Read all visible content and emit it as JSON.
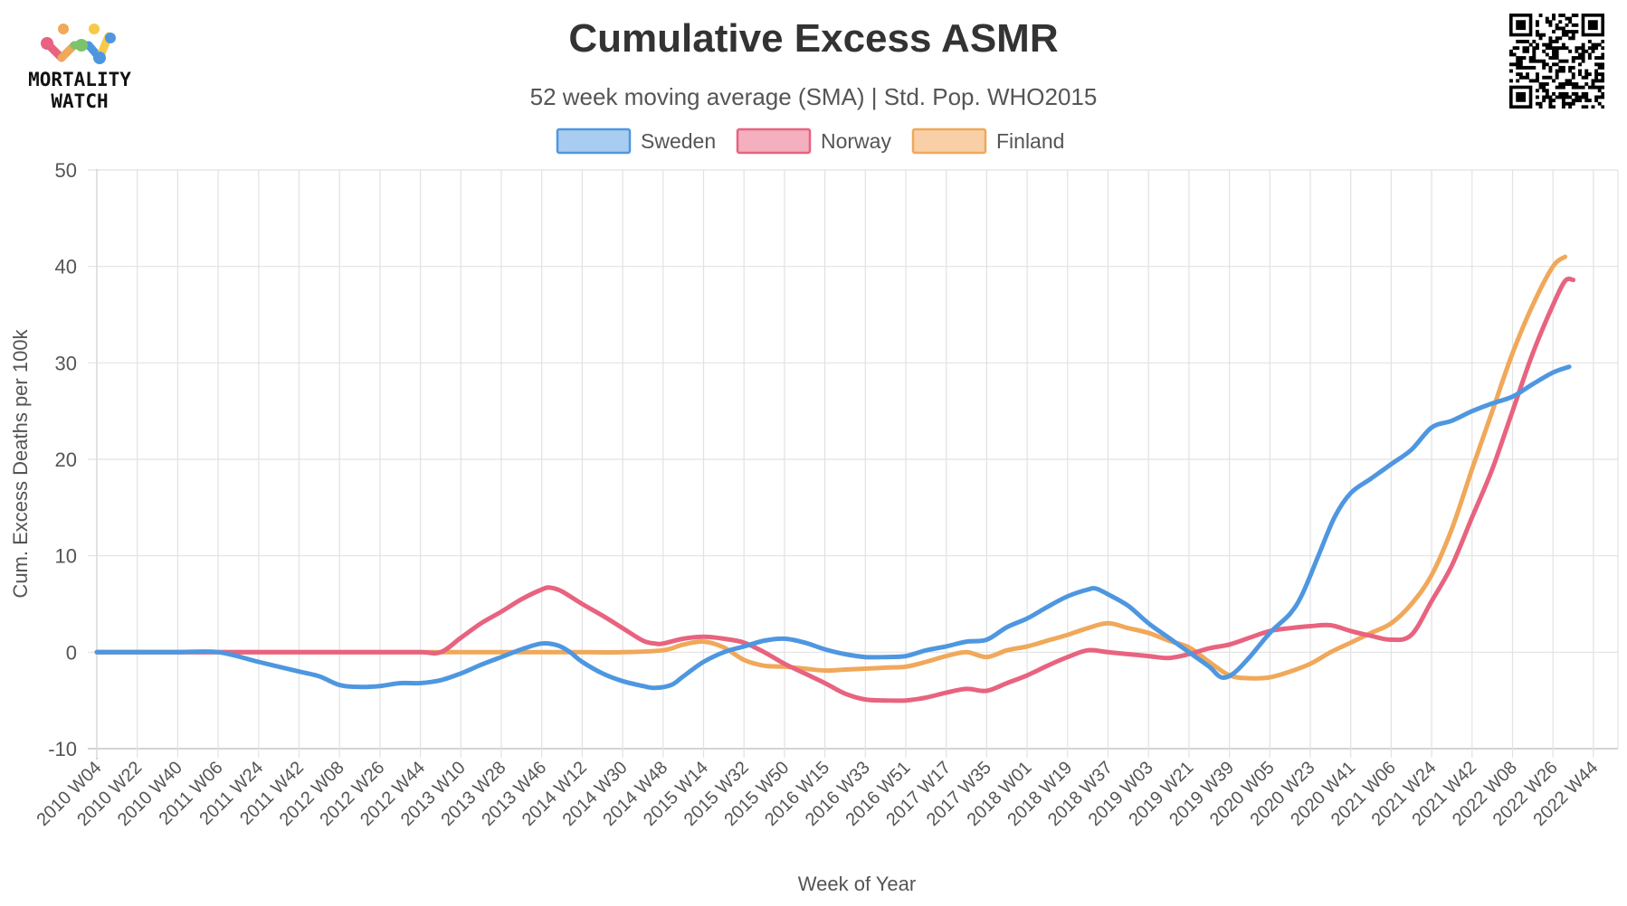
{
  "brand": {
    "name_line1": "MORTALITY",
    "name_line2": "WATCH"
  },
  "colors": {
    "sweden": "#4e97e0",
    "norway": "#e8637f",
    "finland": "#f0a85a",
    "grid": "#e2e2e2",
    "text": "#333333"
  },
  "chart_data": {
    "type": "line",
    "title": "Cumulative Excess ASMR",
    "subtitle": "52 week moving average (SMA) | Std. Pop. WHO2015",
    "xlabel": "Week of Year",
    "ylabel": "Cum. Excess Deaths per 100k",
    "ylim": [
      -10,
      50
    ],
    "yticks": [
      "50",
      "40",
      "30",
      "20",
      "10",
      "0",
      "-10"
    ],
    "xticks": [
      "2010 W04",
      "2010 W22",
      "2010 W40",
      "2011 W06",
      "2011 W24",
      "2011 W42",
      "2012 W08",
      "2012 W26",
      "2012 W44",
      "2013 W10",
      "2013 W28",
      "2013 W46",
      "2014 W12",
      "2014 W30",
      "2014 W48",
      "2015 W14",
      "2015 W32",
      "2015 W50",
      "2016 W15",
      "2016 W33",
      "2016 W51",
      "2017 W17",
      "2017 W35",
      "2018 W01",
      "2018 W19",
      "2018 W37",
      "2019 W03",
      "2019 W21",
      "2019 W39",
      "2020 W05",
      "2020 W23",
      "2020 W41",
      "2021 W06",
      "2021 W24",
      "2021 W42",
      "2022 W08",
      "2022 W26",
      "2022 W44"
    ],
    "grid": true,
    "legend_position": "top",
    "series": [
      {
        "name": "Sweden",
        "color": "#4e97e0",
        "fill": "#a9cdf1",
        "points": [
          [
            0,
            0
          ],
          [
            1,
            0
          ],
          [
            2,
            0
          ],
          [
            3,
            0
          ],
          [
            4,
            -1
          ],
          [
            5,
            -2
          ],
          [
            5.5,
            -2.5
          ],
          [
            6,
            -3.4
          ],
          [
            6.5,
            -3.6
          ],
          [
            7,
            -3.5
          ],
          [
            7.5,
            -3.2
          ],
          [
            8,
            -3.2
          ],
          [
            8.5,
            -2.9
          ],
          [
            9,
            -2.2
          ],
          [
            9.5,
            -1.3
          ],
          [
            10,
            -0.5
          ],
          [
            10.5,
            0.3
          ],
          [
            11,
            0.9
          ],
          [
            11.4,
            0.7
          ],
          [
            11.7,
            0
          ],
          [
            12,
            -1
          ],
          [
            12.5,
            -2.2
          ],
          [
            13,
            -3
          ],
          [
            13.5,
            -3.5
          ],
          [
            13.8,
            -3.7
          ],
          [
            14.2,
            -3.4
          ],
          [
            14.5,
            -2.5
          ],
          [
            15,
            -1
          ],
          [
            15.5,
            0
          ],
          [
            16,
            0.6
          ],
          [
            16.5,
            1.2
          ],
          [
            17,
            1.4
          ],
          [
            17.5,
            1
          ],
          [
            18,
            0.3
          ],
          [
            18.5,
            -0.2
          ],
          [
            19,
            -0.5
          ],
          [
            19.5,
            -0.5
          ],
          [
            20,
            -0.4
          ],
          [
            20.5,
            0.2
          ],
          [
            21,
            0.6
          ],
          [
            21.5,
            1.1
          ],
          [
            22,
            1.3
          ],
          [
            22.5,
            2.6
          ],
          [
            23,
            3.5
          ],
          [
            23.5,
            4.7
          ],
          [
            24,
            5.8
          ],
          [
            24.5,
            6.5
          ],
          [
            24.7,
            6.6
          ],
          [
            25,
            6
          ],
          [
            25.5,
            4.8
          ],
          [
            26,
            3
          ],
          [
            26.5,
            1.5
          ],
          [
            27,
            0
          ],
          [
            27.5,
            -1.5
          ],
          [
            27.8,
            -2.6
          ],
          [
            28.1,
            -2.2
          ],
          [
            28.5,
            -0.5
          ],
          [
            29,
            2
          ],
          [
            29.5,
            4
          ],
          [
            29.8,
            6
          ],
          [
            30.2,
            10
          ],
          [
            30.6,
            14
          ],
          [
            31,
            16.5
          ],
          [
            31.5,
            18
          ],
          [
            32,
            19.5
          ],
          [
            32.5,
            21
          ],
          [
            33,
            23.3
          ],
          [
            33.5,
            24
          ],
          [
            34,
            25
          ],
          [
            34.5,
            25.8
          ],
          [
            35,
            26.5
          ],
          [
            35.5,
            27.8
          ],
          [
            36,
            29
          ],
          [
            36.4,
            29.6
          ]
        ]
      },
      {
        "name": "Norway",
        "color": "#e8637f",
        "fill": "#f4b0bf",
        "points": [
          [
            0,
            0
          ],
          [
            1,
            0
          ],
          [
            2,
            0
          ],
          [
            3,
            0
          ],
          [
            4,
            0
          ],
          [
            5,
            0
          ],
          [
            6,
            0
          ],
          [
            7,
            0
          ],
          [
            8,
            0
          ],
          [
            8.5,
            0
          ],
          [
            9,
            1.5
          ],
          [
            9.5,
            3
          ],
          [
            10,
            4.2
          ],
          [
            10.5,
            5.5
          ],
          [
            11,
            6.5
          ],
          [
            11.2,
            6.7
          ],
          [
            11.5,
            6.3
          ],
          [
            12,
            5
          ],
          [
            12.5,
            3.8
          ],
          [
            13,
            2.5
          ],
          [
            13.5,
            1.2
          ],
          [
            13.8,
            0.9
          ],
          [
            14,
            0.9
          ],
          [
            14.5,
            1.4
          ],
          [
            15,
            1.6
          ],
          [
            15.5,
            1.4
          ],
          [
            16,
            1
          ],
          [
            16.5,
            0
          ],
          [
            17,
            -1.2
          ],
          [
            17.5,
            -2.2
          ],
          [
            18,
            -3.2
          ],
          [
            18.5,
            -4.3
          ],
          [
            19,
            -4.9
          ],
          [
            19.5,
            -5
          ],
          [
            20,
            -5
          ],
          [
            20.5,
            -4.7
          ],
          [
            21,
            -4.2
          ],
          [
            21.5,
            -3.8
          ],
          [
            22,
            -4
          ],
          [
            22.5,
            -3.2
          ],
          [
            23,
            -2.4
          ],
          [
            23.5,
            -1.4
          ],
          [
            24,
            -0.5
          ],
          [
            24.5,
            0.2
          ],
          [
            25,
            0
          ],
          [
            25.5,
            -0.2
          ],
          [
            26,
            -0.4
          ],
          [
            26.5,
            -0.6
          ],
          [
            27,
            -0.2
          ],
          [
            27.5,
            0.4
          ],
          [
            28,
            0.8
          ],
          [
            28.5,
            1.5
          ],
          [
            29,
            2.2
          ],
          [
            29.5,
            2.5
          ],
          [
            30,
            2.7
          ],
          [
            30.5,
            2.8
          ],
          [
            31,
            2.2
          ],
          [
            31.5,
            1.7
          ],
          [
            32,
            1.3
          ],
          [
            32.5,
            1.8
          ],
          [
            33,
            5.3
          ],
          [
            33.5,
            9
          ],
          [
            34,
            14
          ],
          [
            34.5,
            19
          ],
          [
            35,
            25
          ],
          [
            35.5,
            31
          ],
          [
            36,
            36
          ],
          [
            36.3,
            38.5
          ],
          [
            36.5,
            38.6
          ]
        ]
      },
      {
        "name": "Finland",
        "color": "#f0a85a",
        "fill": "#f8cfa6",
        "points": [
          [
            0,
            0
          ],
          [
            1,
            0
          ],
          [
            2,
            0
          ],
          [
            3,
            0
          ],
          [
            4,
            0
          ],
          [
            5,
            0
          ],
          [
            6,
            0
          ],
          [
            7,
            0
          ],
          [
            8,
            0
          ],
          [
            9,
            0
          ],
          [
            10,
            0
          ],
          [
            11,
            0
          ],
          [
            12,
            0
          ],
          [
            13,
            0
          ],
          [
            14,
            0.2
          ],
          [
            14.5,
            0.8
          ],
          [
            15,
            1.1
          ],
          [
            15.5,
            0.5
          ],
          [
            16,
            -0.8
          ],
          [
            16.5,
            -1.4
          ],
          [
            17,
            -1.5
          ],
          [
            17.5,
            -1.7
          ],
          [
            18,
            -1.9
          ],
          [
            18.5,
            -1.8
          ],
          [
            19,
            -1.7
          ],
          [
            19.5,
            -1.6
          ],
          [
            20,
            -1.5
          ],
          [
            20.5,
            -1
          ],
          [
            21,
            -0.4
          ],
          [
            21.5,
            0
          ],
          [
            22,
            -0.5
          ],
          [
            22.5,
            0.2
          ],
          [
            23,
            0.6
          ],
          [
            23.5,
            1.2
          ],
          [
            24,
            1.8
          ],
          [
            24.5,
            2.5
          ],
          [
            25,
            3
          ],
          [
            25.5,
            2.5
          ],
          [
            26,
            2
          ],
          [
            26.5,
            1.2
          ],
          [
            27,
            0.5
          ],
          [
            27.5,
            -1
          ],
          [
            28,
            -2.4
          ],
          [
            28.5,
            -2.7
          ],
          [
            29,
            -2.6
          ],
          [
            29.5,
            -2
          ],
          [
            30,
            -1.2
          ],
          [
            30.5,
            0
          ],
          [
            31,
            1
          ],
          [
            31.5,
            2
          ],
          [
            32,
            3
          ],
          [
            32.5,
            5
          ],
          [
            33,
            8
          ],
          [
            33.5,
            12.8
          ],
          [
            34,
            19
          ],
          [
            34.5,
            25
          ],
          [
            35,
            31
          ],
          [
            35.5,
            36
          ],
          [
            36,
            40
          ],
          [
            36.3,
            41
          ]
        ]
      }
    ]
  }
}
